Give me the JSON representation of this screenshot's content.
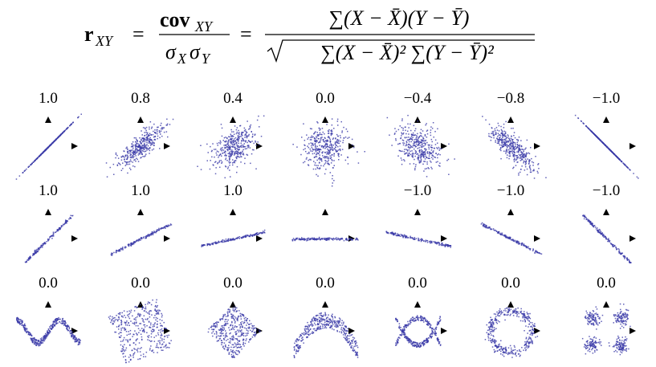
{
  "formula": {
    "lhs": "r",
    "lhs_sub": "XY",
    "eq1": "=",
    "cov": "cov",
    "cov_sub": "XY",
    "sigma1": "σ",
    "sigma1_sub": "X",
    "sigma2": "σ",
    "sigma2_sub": "Y",
    "eq2": "=",
    "numerator": "∑(X − X̄)(Y − Ȳ)",
    "denominator": "∑(X − X̄)² ∑(Y − Ȳ)²"
  },
  "panels": [
    {
      "value": 1.0,
      "label": "1.0"
    },
    {
      "value": 0.8,
      "label": "0.8"
    },
    {
      "value": 0.4,
      "label": "0.4"
    },
    {
      "value": 0.0,
      "label": "0.0"
    },
    {
      "value": -0.4,
      "label": "−0.4"
    },
    {
      "value": -0.8,
      "label": "−0.8"
    },
    {
      "value": -1.0,
      "label": "−1.0"
    },
    {
      "value": 1.0,
      "label": "1.0"
    },
    {
      "value": 1.0,
      "label": "1.0"
    },
    {
      "value": 1.0,
      "label": "1.0"
    },
    {},
    {
      "value": -1.0,
      "label": "−1.0"
    },
    {
      "value": -1.0,
      "label": "−1.0"
    },
    {
      "value": -1.0,
      "label": "−1.0"
    },
    {
      "value": 0.0,
      "label": "0.0"
    },
    {
      "value": 0.0,
      "label": "0.0"
    },
    {
      "value": 0.0,
      "label": "0.0"
    },
    {
      "value": 0.0,
      "label": "0.0"
    },
    {
      "value": 0.0,
      "label": "0.0"
    },
    {
      "value": 0.0,
      "label": "0.0"
    },
    {
      "value": 0.0,
      "label": "0.0"
    }
  ]
}
